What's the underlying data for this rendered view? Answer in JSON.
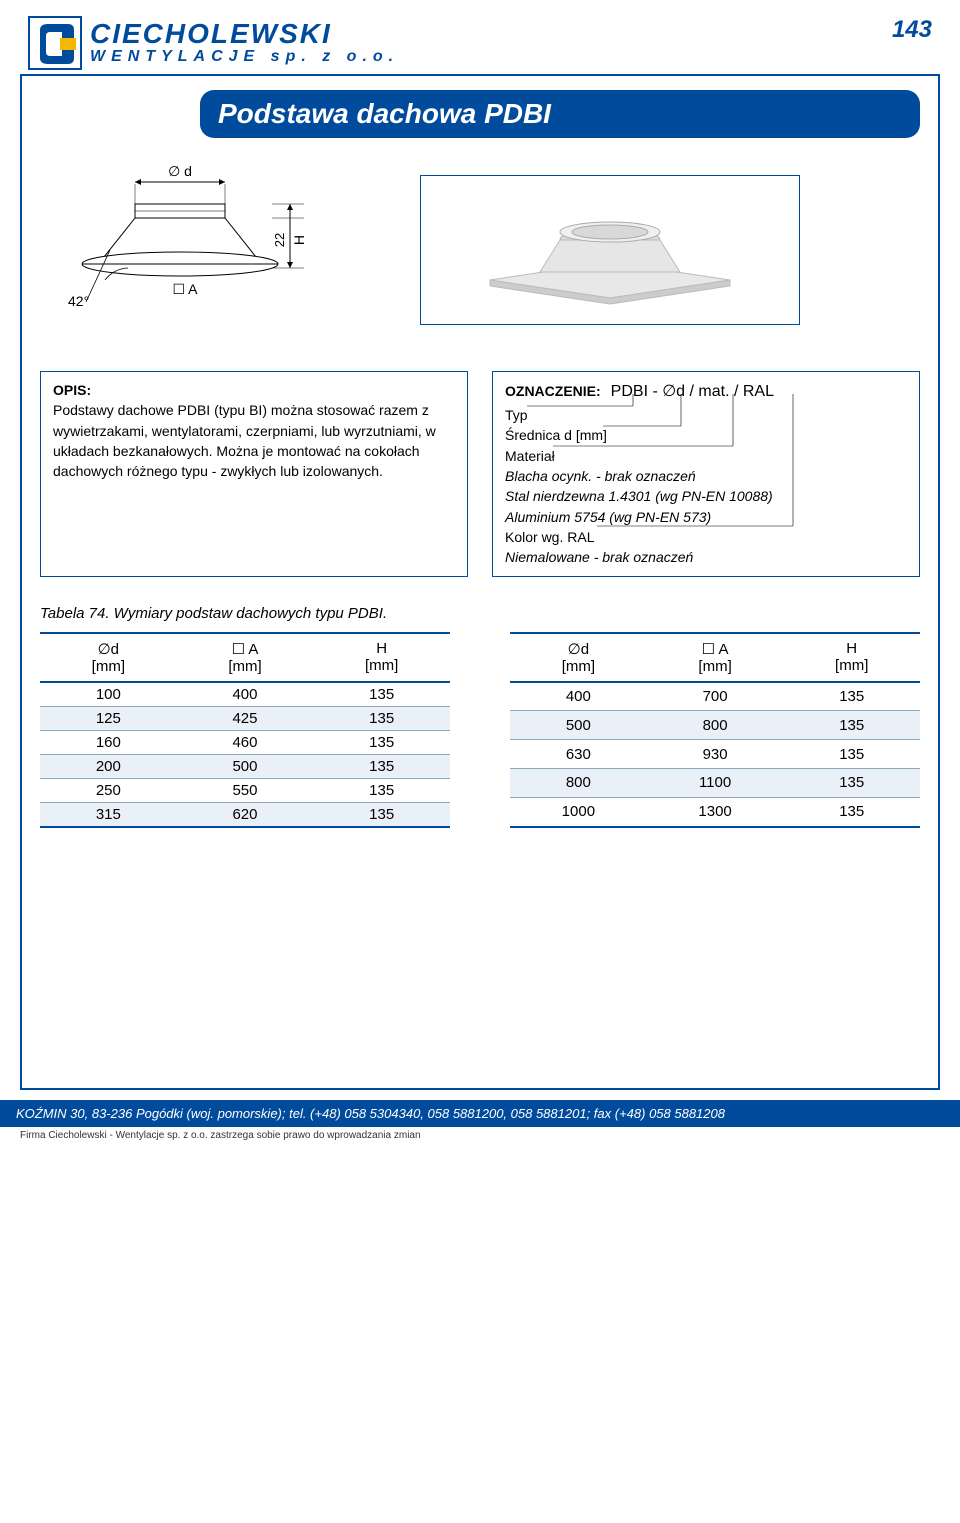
{
  "header": {
    "brand": "CIECHOLEWSKI",
    "subtitle": "WENTYLACJE sp. z o.o.",
    "page_number": "143"
  },
  "title": "Podstawa dachowa PDBI",
  "diagram": {
    "d_label": "∅ d",
    "angle_label": "42°",
    "a_label": "☐ A",
    "h_offset": "22",
    "h_label": "H"
  },
  "opis": {
    "heading": "OPIS:",
    "text": "Podstawy dachowe PDBI (typu BI) można stosować razem z wywietrzakami, wentylatorami, czerpniami, lub wyrzutniami, w układach bezkanałowych. Można je montować na cokołach dachowych różnego typu - zwykłych lub izolowanych."
  },
  "oznaczenie": {
    "label": "OZNACZENIE:",
    "code": "PDBI - ∅d / mat. / RAL",
    "lines": [
      "Typ",
      "Średnica d [mm]",
      "Materiał",
      "Blacha ocynk. - brak oznaczeń",
      "Stal nierdzewna 1.4301 (wg PN-EN 10088)",
      "Aluminium 5754 (wg PN-EN 573)",
      "Kolor wg. RAL",
      "Niemalowane - brak oznaczeń"
    ]
  },
  "table_caption": "Tabela 74. Wymiary podstaw dachowych typu PDBI.",
  "columns": [
    {
      "main": "∅d",
      "unit": "[mm]"
    },
    {
      "main": "☐ A",
      "unit": "[mm]"
    },
    {
      "main": "H",
      "unit": "[mm]"
    }
  ],
  "table_left": [
    [
      "100",
      "400",
      "135"
    ],
    [
      "125",
      "425",
      "135"
    ],
    [
      "160",
      "460",
      "135"
    ],
    [
      "200",
      "500",
      "135"
    ],
    [
      "250",
      "550",
      "135"
    ],
    [
      "315",
      "620",
      "135"
    ]
  ],
  "table_right": [
    [
      "400",
      "700",
      "135"
    ],
    [
      "500",
      "800",
      "135"
    ],
    [
      "630",
      "930",
      "135"
    ],
    [
      "800",
      "1100",
      "135"
    ],
    [
      "1000",
      "1300",
      "135"
    ]
  ],
  "footer": {
    "address": "KOŹMIN 30, 83-236 Pogódki (woj. pomorskie); tel. (+48) 058 5304340, 058 5881200, 058 5881201; fax (+48) 058 5881208",
    "note": "Firma Ciecholewski - Wentylacje sp. z o.o. zastrzega sobie prawo do wprowadzania zmian"
  },
  "colors": {
    "primary": "#004b9c",
    "alt_row": "#eaf0f7",
    "white": "#ffffff"
  }
}
